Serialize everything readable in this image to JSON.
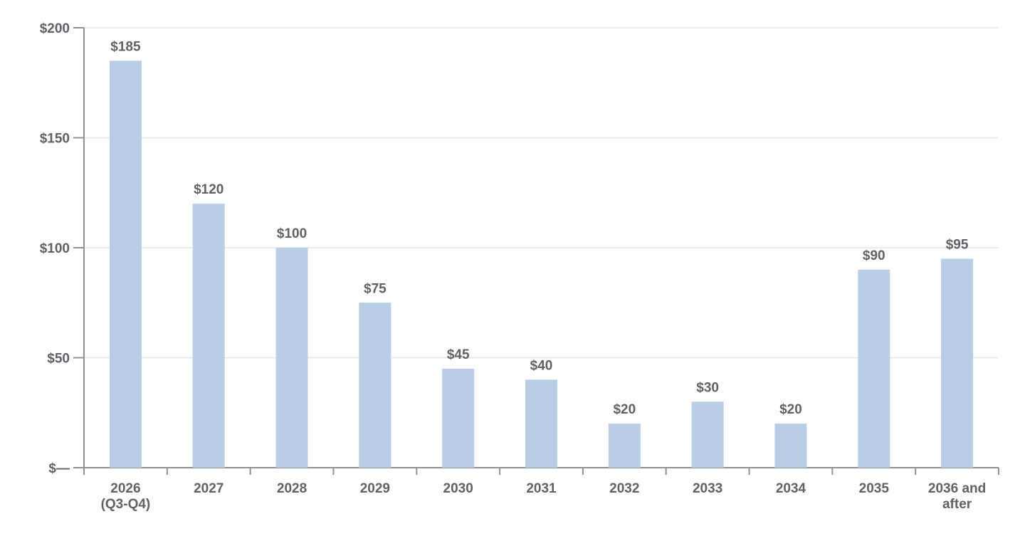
{
  "chart_data": {
    "type": "bar",
    "categories": [
      [
        "2026",
        "(Q3-Q4)"
      ],
      [
        "2027"
      ],
      [
        "2028"
      ],
      [
        "2029"
      ],
      [
        "2030"
      ],
      [
        "2031"
      ],
      [
        "2032"
      ],
      [
        "2033"
      ],
      [
        "2034"
      ],
      [
        "2035"
      ],
      [
        "2036 and",
        "after"
      ]
    ],
    "values": [
      185,
      120,
      100,
      75,
      45,
      40,
      20,
      30,
      20,
      90,
      95
    ],
    "value_labels": [
      "$185",
      "$120",
      "$100",
      "$75",
      "$45",
      "$40",
      "$20",
      "$30",
      "$20",
      "$90",
      "$95"
    ],
    "y_ticks": [
      0,
      50,
      100,
      150,
      200
    ],
    "y_tick_labels": [
      "$—",
      "$50",
      "$100",
      "$150",
      "$200"
    ],
    "ylim": [
      0,
      200
    ],
    "grid": true,
    "title": "",
    "xlabel": "",
    "ylabel": "",
    "colors": {
      "bar": "#b9cde5",
      "text": "#5f6166",
      "grid": "#e3e5e8",
      "axis": "#8e9095"
    }
  }
}
